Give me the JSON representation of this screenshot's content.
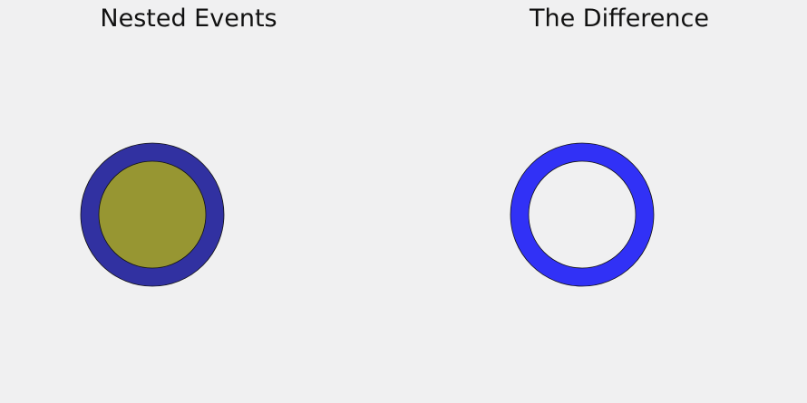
{
  "panels": [
    {
      "title": "Nested Events",
      "outer_color": "#3131a1",
      "inner_color": "#979632"
    },
    {
      "title": "The Difference",
      "ring_color": "#3131f6",
      "hole_color": "#f0f0f1"
    }
  ],
  "colors": {
    "background": "#f0f0f1",
    "stroke": "#111111"
  }
}
